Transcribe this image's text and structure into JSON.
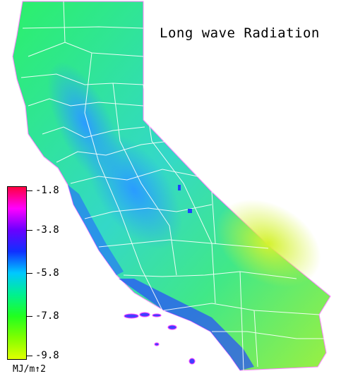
{
  "title": "Long wave Radiation",
  "legend": {
    "unit": "MJ/m↑2",
    "ticks": [
      "-1.8",
      "-3.8",
      "-5.8",
      "-7.8",
      "-9.8"
    ],
    "gradient": [
      "#ff0040",
      "#ff00ff",
      "#6a00ff",
      "#1030ff",
      "#00c8ff",
      "#00f090",
      "#20ff20",
      "#7fff00",
      "#e0ff00"
    ]
  },
  "colors": {
    "county_lines": "#ffffff",
    "background": "#ffffff"
  }
}
